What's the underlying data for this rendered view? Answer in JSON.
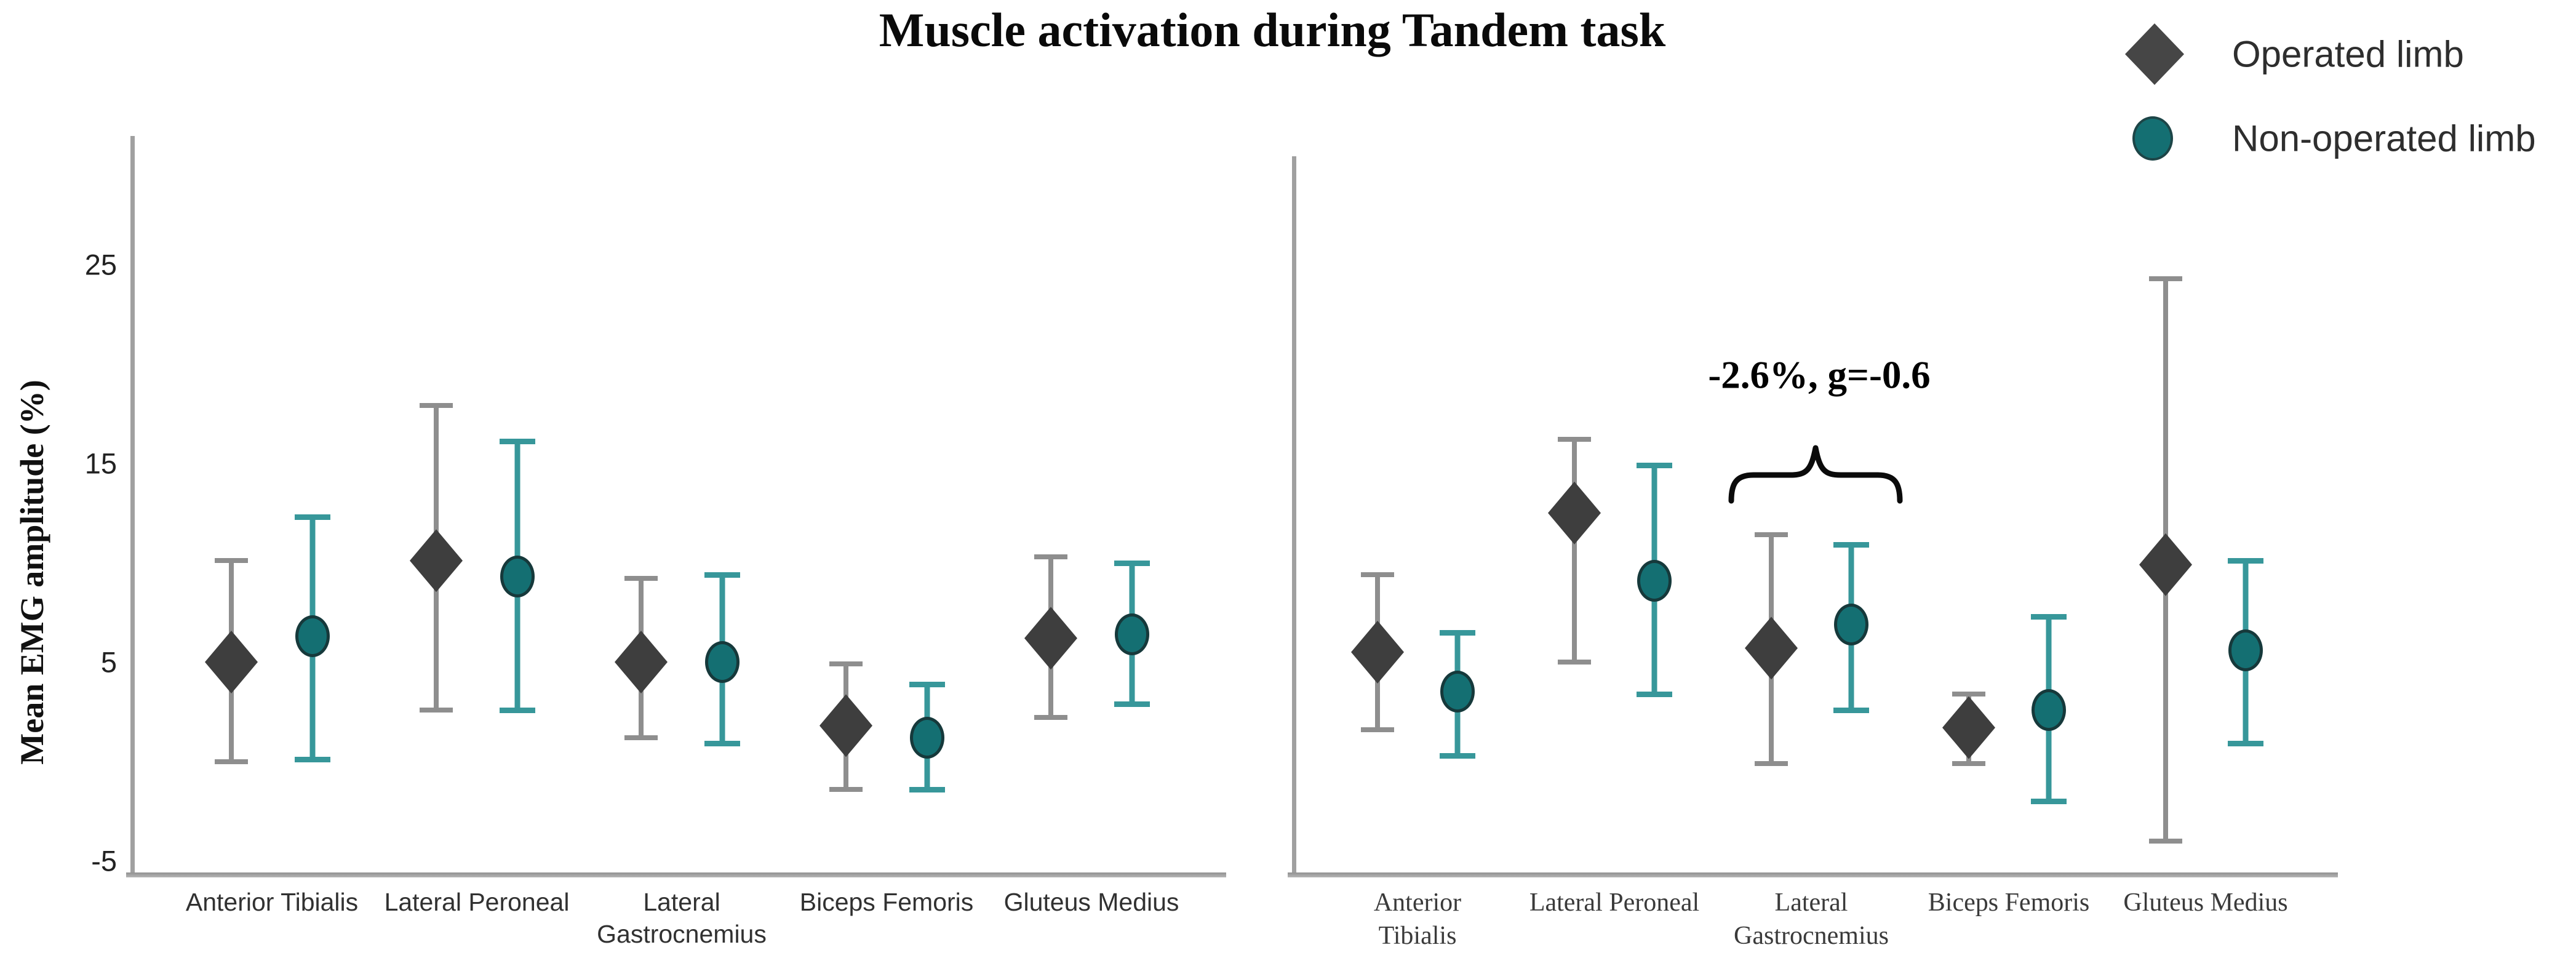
{
  "title": "Muscle activation during Tandem task",
  "y_axis": {
    "label": "Mean EMG amplitude (%)",
    "ticks": [
      "25",
      "15",
      "5",
      "-5"
    ],
    "tick_values": [
      25,
      15,
      5,
      -5
    ]
  },
  "legend": {
    "items": [
      {
        "label": "Operated limb",
        "marker": "diamond"
      },
      {
        "label": "Non-operated limb",
        "marker": "circle"
      }
    ]
  },
  "colors": {
    "operated_marker": "#3e3e3e",
    "operated_error_bar": "#8e8e8e",
    "non_operated_marker": "#146f72",
    "non_operated_marker_edge": "#16393b",
    "non_operated_error_bar": "#37979a",
    "axis_line": "#9e9e9e",
    "annotation_text": "#000000"
  },
  "chart_data": [
    {
      "type": "scatter",
      "panel": "left",
      "ylabel": "Mean EMG amplitude (%)",
      "ylim": [
        -6.5,
        31
      ],
      "yticks": [
        25,
        15,
        5,
        -5
      ],
      "grid": false,
      "categories": [
        "Anterior Tibialis",
        "Lateral Peroneal",
        "Lateral\nGastrocnemius",
        "Biceps Femoris",
        "Gluteus Medius"
      ],
      "series": [
        {
          "name": "Operated limb",
          "marker": "diamond",
          "points": [
            {
              "mean": 5.0,
              "ci_low": 0.0,
              "ci_high": 10.1
            },
            {
              "mean": 10.1,
              "ci_low": 2.6,
              "ci_high": 17.9
            },
            {
              "mean": 5.0,
              "ci_low": 1.2,
              "ci_high": 9.2
            },
            {
              "mean": 1.8,
              "ci_low": -1.4,
              "ci_high": 4.9
            },
            {
              "mean": 6.2,
              "ci_low": 2.2,
              "ci_high": 10.3
            }
          ]
        },
        {
          "name": "Non-operated limb",
          "marker": "circle",
          "points": [
            {
              "mean": 6.3,
              "ci_low": 0.1,
              "ci_high": 12.3
            },
            {
              "mean": 9.3,
              "ci_low": 2.6,
              "ci_high": 16.1
            },
            {
              "mean": 5.0,
              "ci_low": 0.9,
              "ci_high": 9.4
            },
            {
              "mean": 1.2,
              "ci_low": -1.4,
              "ci_high": 3.9
            },
            {
              "mean": 6.4,
              "ci_low": 2.9,
              "ci_high": 10.0
            }
          ]
        }
      ]
    },
    {
      "type": "scatter",
      "panel": "right",
      "ylim": [
        -6.5,
        31
      ],
      "grid": false,
      "categories": [
        "Anterior\nTibialis",
        "Lateral Peroneal",
        "Lateral\nGastrocnemius",
        "Biceps Femoris",
        "Gluteus Medius"
      ],
      "annotation": {
        "text": "-2.6%, g=-0.6",
        "category": "Lateral Gastrocnemius"
      },
      "series": [
        {
          "name": "Operated limb",
          "marker": "diamond",
          "points": [
            {
              "mean": 5.5,
              "ci_low": 1.6,
              "ci_high": 9.4
            },
            {
              "mean": 12.5,
              "ci_low": 5.0,
              "ci_high": 16.2
            },
            {
              "mean": 5.7,
              "ci_low": -0.1,
              "ci_high": 11.4
            },
            {
              "mean": 1.7,
              "ci_low": -0.1,
              "ci_high": 3.4
            },
            {
              "mean": 9.9,
              "ci_low": -4.0,
              "ci_high": 24.3
            }
          ]
        },
        {
          "name": "Non-operated limb",
          "marker": "circle",
          "points": [
            {
              "mean": 3.5,
              "ci_low": 0.3,
              "ci_high": 6.5
            },
            {
              "mean": 9.1,
              "ci_low": 3.4,
              "ci_high": 14.9
            },
            {
              "mean": 6.9,
              "ci_low": 2.6,
              "ci_high": 10.9
            },
            {
              "mean": 2.6,
              "ci_low": -2.0,
              "ci_high": 7.3
            },
            {
              "mean": 5.6,
              "ci_low": 0.9,
              "ci_high": 10.1
            }
          ]
        }
      ]
    }
  ]
}
